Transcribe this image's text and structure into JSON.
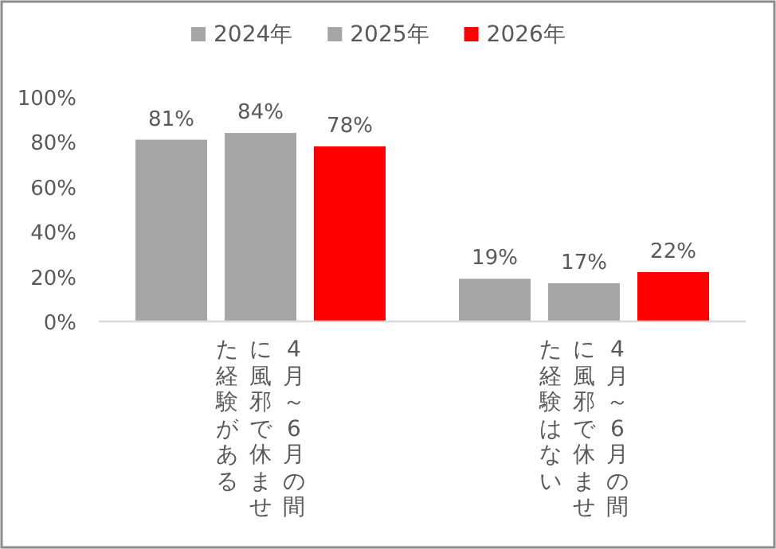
{
  "chart_data": {
    "type": "bar",
    "categories": [
      "4月～6月の間に風邪で休ませた経験がある",
      "4月～6月の間に風邪で休ませた経験はない"
    ],
    "series": [
      {
        "name": "2024年",
        "color": "#a5a5a5",
        "values": [
          81,
          19
        ],
        "value_labels": [
          "81%",
          "19%"
        ]
      },
      {
        "name": "2025年",
        "color": "#a5a5a5",
        "values": [
          84,
          17
        ],
        "value_labels": [
          "84%",
          "17%"
        ]
      },
      {
        "name": "2026年",
        "color": "#ff0000",
        "values": [
          78,
          22
        ],
        "value_labels": [
          "78%",
          "22%"
        ]
      }
    ],
    "ylim": [
      0,
      100
    ],
    "yticks": [
      {
        "value": 0,
        "label": "0%"
      },
      {
        "value": 20,
        "label": "20%"
      },
      {
        "value": 40,
        "label": "40%"
      },
      {
        "value": 60,
        "label": "60%"
      },
      {
        "value": 80,
        "label": "80%"
      },
      {
        "value": 100,
        "label": "100%"
      }
    ],
    "grid": false,
    "legend": "top"
  }
}
